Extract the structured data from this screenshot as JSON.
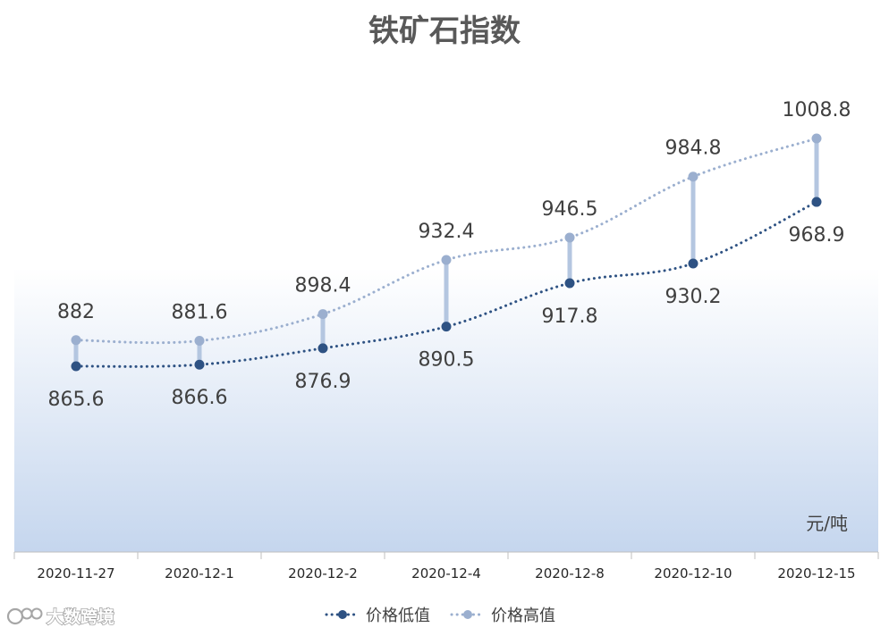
{
  "chart_data": {
    "type": "line",
    "title": "铁矿石指数",
    "unit": "元/吨",
    "categories": [
      "2020-11-27",
      "2020-12-1",
      "2020-12-2",
      "2020-12-4",
      "2020-12-8",
      "2020-12-10",
      "2020-12-15"
    ],
    "series": [
      {
        "name": "价格低值",
        "color": "#2e5283",
        "values": [
          865.6,
          866.6,
          876.9,
          890.5,
          917.8,
          930.2,
          968.9
        ]
      },
      {
        "name": "价格高值",
        "color": "#9bafcf",
        "values": [
          882,
          881.6,
          898.4,
          932.4,
          946.5,
          984.8,
          1008.8
        ]
      }
    ],
    "high_low_lines": true,
    "legend_position": "bottom",
    "grid": false,
    "line_style": "dotted-smooth"
  },
  "watermark": {
    "text": "大数跨境"
  }
}
